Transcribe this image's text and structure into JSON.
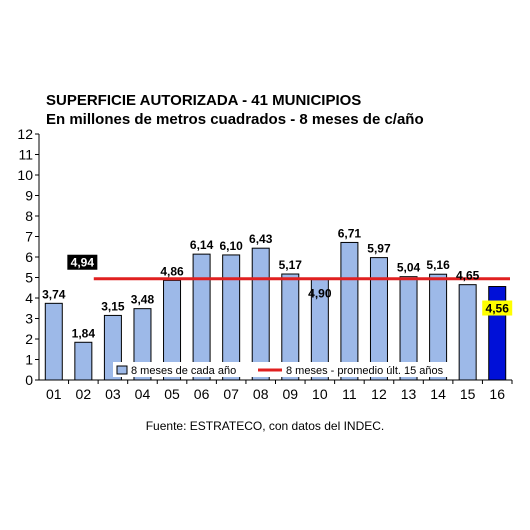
{
  "chart_data": {
    "type": "bar",
    "title": "SUPERFICIE AUTORIZADA - 41 MUNICIPIOS",
    "subtitle": "En millones de metros cuadrados - 8 meses de c/año",
    "categories": [
      "01",
      "02",
      "03",
      "04",
      "05",
      "06",
      "07",
      "08",
      "09",
      "10",
      "11",
      "12",
      "13",
      "14",
      "15",
      "16"
    ],
    "series": [
      {
        "name": "8 meses de cada año",
        "values": [
          3.74,
          1.84,
          3.15,
          3.48,
          4.86,
          6.14,
          6.1,
          6.43,
          5.17,
          4.9,
          6.71,
          5.97,
          5.04,
          5.16,
          4.65,
          4.56
        ],
        "labels": [
          "3,74",
          "1,84",
          "3,15",
          "3,48",
          "4,86",
          "6,14",
          "6,10",
          "6,43",
          "5,17",
          "4,90",
          "6,71",
          "5,97",
          "5,04",
          "5,16",
          "4,65",
          "4,56"
        ],
        "color": "#9db9e8",
        "highlight_color": "#0010d8"
      },
      {
        "name": "8 meses - promedio últ. 15 años",
        "type": "line",
        "value": 4.94,
        "label": "4,94",
        "color": "#e02020"
      }
    ],
    "ylim": [
      0,
      12
    ],
    "yticks": [
      "0",
      "1",
      "2",
      "3",
      "4",
      "5",
      "6",
      "7",
      "8",
      "9",
      "10",
      "11",
      "12"
    ],
    "legend_position": "bottom-inside",
    "grid": false,
    "colors": {
      "bar": "#9db9e8",
      "bar_last": "#0010d8",
      "average_line": "#e02020",
      "average_label_bg": "#000000",
      "last_label_bg": "#ffff00"
    }
  },
  "source": "Fuente: ESTRATECO, con datos del INDEC."
}
